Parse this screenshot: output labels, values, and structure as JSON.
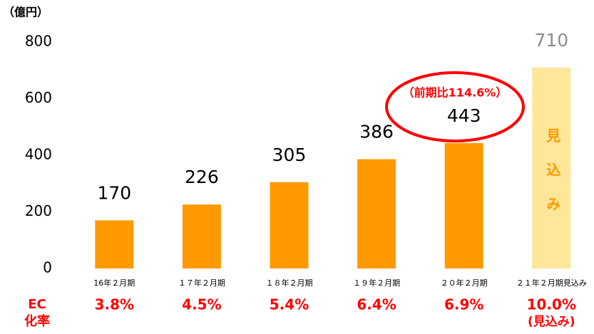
{
  "chart_data": {
    "type": "bar",
    "title": "（億円）",
    "categories": [
      "16年２月期",
      "１７年２月期",
      "１８年２月期",
      "１９年２月期",
      "２０年２月期",
      "２１年２月期見込み"
    ],
    "values": [
      170,
      226,
      305,
      386,
      443,
      710
    ],
    "colors": [
      "#ff9900",
      "#ff9900",
      "#ff9900",
      "#ff9900",
      "#ff9900",
      "#ffe699"
    ],
    "value_label_colors": [
      "#000000",
      "#000000",
      "#000000",
      "#000000",
      "#000000",
      "#8c8c8c"
    ],
    "ylim": [
      0,
      800
    ],
    "yticks": [
      0,
      200,
      400,
      600,
      800
    ],
    "grid": false,
    "annotation": "（前期比114.6%）",
    "forecast_label": "見込み",
    "ec_rate": {
      "label_lines": [
        "EC",
        "化率"
      ],
      "values": [
        3.8,
        4.5,
        5.4,
        6.4,
        6.9,
        10.0
      ],
      "value_labels": [
        "3.8%",
        "4.5%",
        "5.4%",
        "6.4%",
        "6.9%",
        "10.0%"
      ],
      "note": "(見込み)"
    }
  }
}
